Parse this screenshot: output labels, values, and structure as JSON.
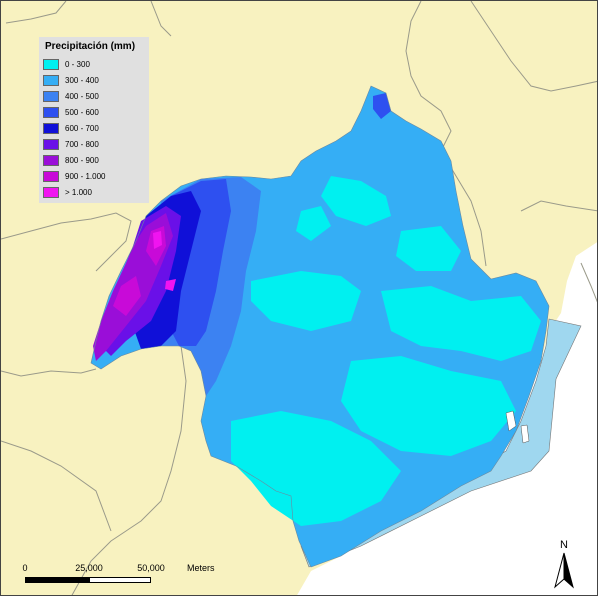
{
  "map": {
    "colors": {
      "land": "#f8f2c0",
      "sea": "#ffffff",
      "boundary": "#9a9a8a",
      "coastal_water": "#9fd7ef"
    }
  },
  "legend": {
    "title": "Precipitación (mm)",
    "items": [
      {
        "label": "0 - 300",
        "color": "#00f0f0"
      },
      {
        "label": "300 - 400",
        "color": "#35aef5"
      },
      {
        "label": "400 - 500",
        "color": "#3c82f2"
      },
      {
        "label": "500 - 600",
        "color": "#2e50f0"
      },
      {
        "label": "600 - 700",
        "color": "#1010d8"
      },
      {
        "label": "700 - 800",
        "color": "#6a10e8"
      },
      {
        "label": "800 - 900",
        "color": "#9a0ed8"
      },
      {
        "label": "900 - 1.000",
        "color": "#c80ad8"
      },
      {
        "label": "> 1.000",
        "color": "#f014f0"
      }
    ]
  },
  "scale_bar": {
    "labels": [
      "0",
      "25,000",
      "50,000"
    ],
    "units": "Meters"
  },
  "north_arrow": {
    "label": "N",
    "icon": "north-arrow-icon"
  }
}
